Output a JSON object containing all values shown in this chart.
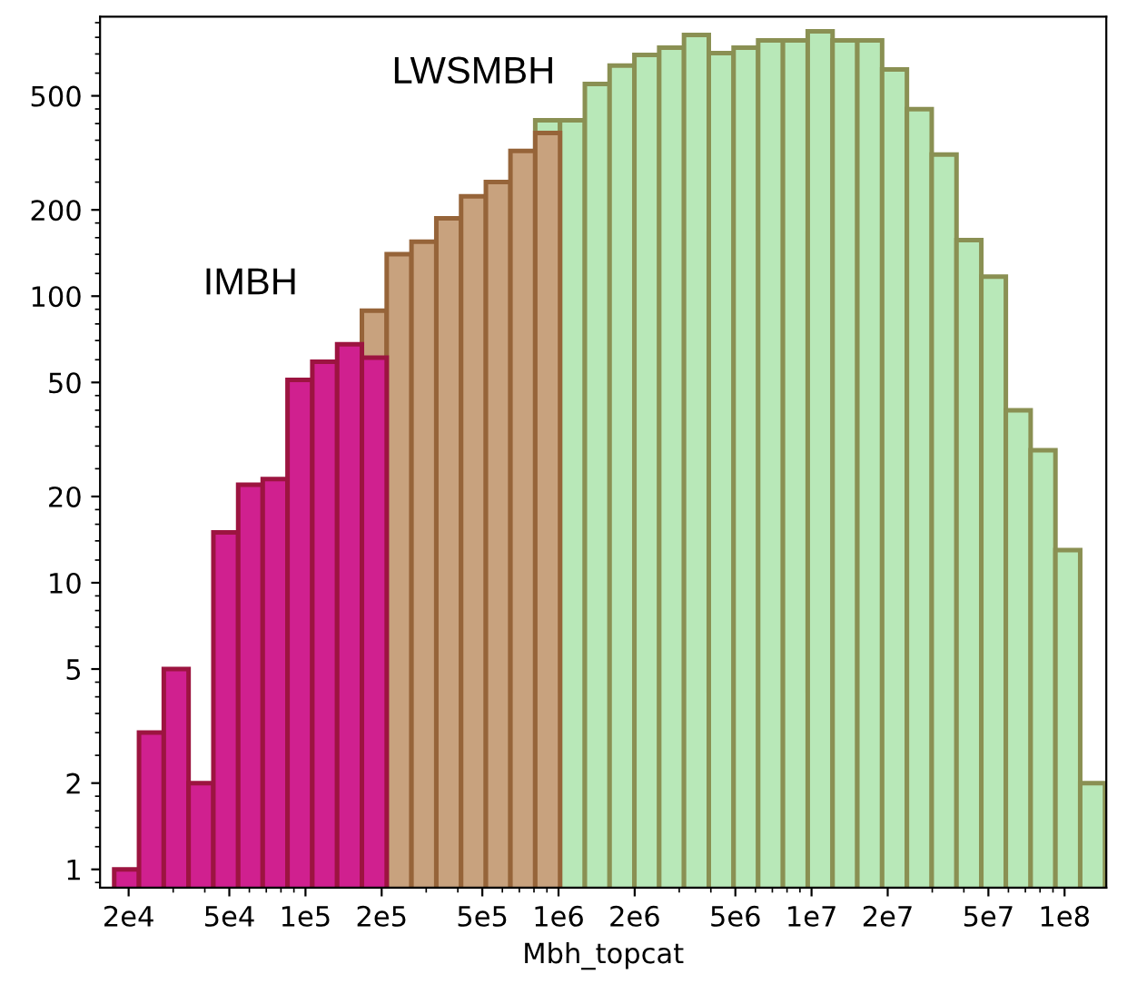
{
  "chart_data": {
    "type": "histogram",
    "xlabel": "Mbh_topcat",
    "log": "xy",
    "bins": [
      17540,
      21980,
      27540,
      34510,
      43250,
      54200,
      67760,
      84920,
      106400,
      133400,
      167100,
      209400,
      262400,
      328900,
      412100,
      516400,
      645700,
      809100,
      1014000,
      1271000,
      1592000,
      1995000,
      2500000,
      3133000,
      3926000,
      4920000,
      6152000,
      7709000,
      9661000,
      12110000,
      15170000,
      19010000,
      23820000,
      29850000,
      37410000,
      46880000,
      58610000,
      73450000,
      92040000,
      115300000,
      144500000
    ],
    "series": [
      {
        "color": "#b8e8b8",
        "values": [
          null,
          null,
          null,
          null,
          null,
          null,
          null,
          null,
          null,
          null,
          null,
          null,
          null,
          null,
          null,
          null,
          null,
          411,
          411,
          550,
          637,
          695,
          736,
          815,
          705,
          736,
          780,
          780,
          839,
          780,
          780,
          618,
          449,
          312,
          157,
          117,
          40,
          29,
          13,
          2
        ]
      },
      {
        "name": "LWSMBH",
        "color": "#c8a27e",
        "values": [
          null,
          null,
          null,
          null,
          null,
          null,
          null,
          null,
          null,
          null,
          89,
          140,
          155,
          187,
          223,
          250,
          321,
          371,
          null,
          null,
          null,
          null,
          null,
          null,
          null,
          null,
          null,
          null,
          null,
          null,
          null,
          null,
          null,
          null,
          null,
          null,
          null,
          null,
          null,
          null
        ]
      },
      {
        "name": "IMBH",
        "color": "#d0208f",
        "values": [
          1,
          3,
          5,
          2,
          15,
          22,
          23,
          51,
          59,
          68,
          61,
          null,
          null,
          null,
          null,
          null,
          null,
          null,
          null,
          null,
          null,
          null,
          null,
          null,
          null,
          null,
          null,
          null,
          null,
          null,
          null,
          null,
          null,
          null,
          null,
          null,
          null,
          null,
          null,
          null
        ]
      }
    ],
    "xlim": [
      15420,
      146200000
    ],
    "ylim": [
      0.864,
      944
    ],
    "xticks": [
      {
        "value": 20000,
        "label": "2e4"
      },
      {
        "value": 50000,
        "label": "5e4"
      },
      {
        "value": 100000,
        "label": "1e5"
      },
      {
        "value": 200000,
        "label": "2e5"
      },
      {
        "value": 500000,
        "label": "5e5"
      },
      {
        "value": 1000000,
        "label": "1e6"
      },
      {
        "value": 2000000,
        "label": "2e6"
      },
      {
        "value": 5000000,
        "label": "5e6"
      },
      {
        "value": 10000000,
        "label": "1e7"
      },
      {
        "value": 20000000,
        "label": "2e7"
      },
      {
        "value": 50000000,
        "label": "5e7"
      },
      {
        "value": 100000000,
        "label": "1e8"
      }
    ],
    "yticks": [
      1,
      2,
      5,
      10,
      20,
      50,
      100,
      200,
      500
    ],
    "legend": false
  }
}
